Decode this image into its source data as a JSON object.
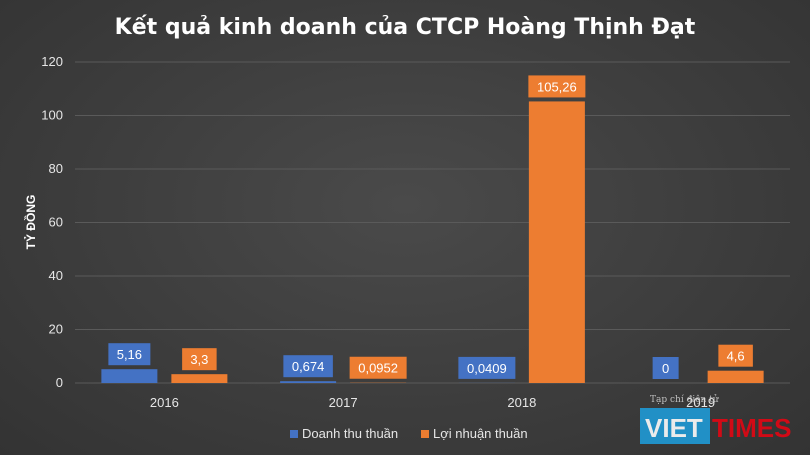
{
  "chart_data": {
    "type": "bar",
    "title": "Kết quả kinh doanh của CTCP Hoàng Thịnh Đạt",
    "ylabel": "TỶ ĐỒNG",
    "xlabel": "",
    "ylim": [
      0,
      120
    ],
    "yticks": [
      "0",
      "20",
      "40",
      "60",
      "80",
      "100",
      "120"
    ],
    "categories": [
      "2016",
      "2017",
      "2018",
      "2019"
    ],
    "grid": true,
    "legend_position": "bottom",
    "series": [
      {
        "name": "Doanh thu thuần",
        "color": "#4472c4",
        "values": [
          5.16,
          0.674,
          0.0409,
          0
        ],
        "labels": [
          "5,16",
          "0,674",
          "0,0409",
          "0"
        ]
      },
      {
        "name": "Lợi nhuận thuần",
        "color": "#ed7d31",
        "values": [
          3.3,
          0.0952,
          105.26,
          4.6
        ],
        "labels": [
          "3,3",
          "0,0952",
          "105,26",
          "4,6"
        ]
      }
    ]
  },
  "watermark": {
    "small_text": "Tạp chí điện tử",
    "brand_left": "VIET",
    "brand_right": "TIMES",
    "brand_left_color": "#1f9ad6",
    "brand_right_color": "#e30613"
  }
}
